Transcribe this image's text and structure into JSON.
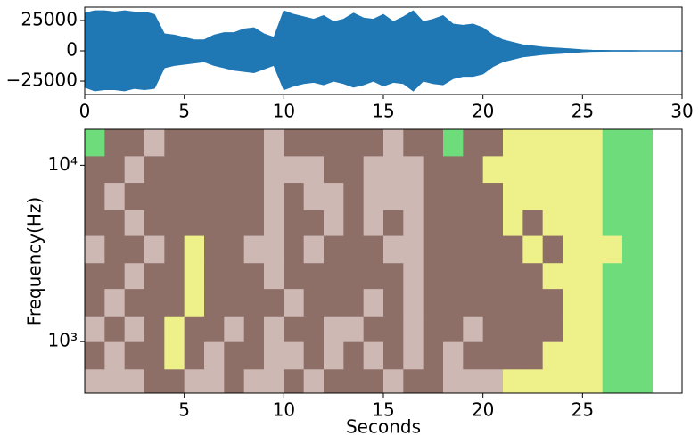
{
  "chart_data": [
    {
      "type": "envelope",
      "color": "#1f77b4",
      "x": [
        0,
        0.5,
        1,
        1.5,
        2,
        2.5,
        3,
        3.5,
        4,
        4.5,
        5,
        5.5,
        6,
        6.5,
        7,
        7.5,
        8,
        8.5,
        9,
        9.5,
        10,
        10.5,
        11,
        11.5,
        12,
        12.5,
        13,
        13.5,
        14,
        14.5,
        15,
        15.5,
        16,
        16.5,
        17,
        17.5,
        18,
        18.5,
        19,
        19.5,
        20,
        20.5,
        21,
        21.5,
        22,
        22.5,
        23,
        23.5,
        24,
        24.5,
        25,
        25.5,
        26,
        26.5,
        27,
        27.5,
        28,
        28.5,
        29,
        29.5,
        30
      ],
      "upper": [
        31000,
        33000,
        33000,
        32000,
        33000,
        32000,
        32000,
        30000,
        14000,
        13000,
        11000,
        9000,
        9000,
        13000,
        15000,
        15000,
        18000,
        19000,
        14000,
        11000,
        33000,
        30000,
        28000,
        26000,
        29000,
        24000,
        26000,
        31000,
        27000,
        26000,
        30000,
        24000,
        28000,
        33000,
        24000,
        26000,
        29000,
        22000,
        21000,
        22000,
        19000,
        13000,
        9000,
        7000,
        5000,
        4000,
        3000,
        2500,
        2000,
        1500,
        800,
        500,
        400,
        300,
        300,
        300,
        200,
        200,
        200,
        200,
        200
      ],
      "lower": [
        -30000,
        -33000,
        -32000,
        -32000,
        -33000,
        -31000,
        -32000,
        -31000,
        -14000,
        -12000,
        -11000,
        -10000,
        -9000,
        -12000,
        -14000,
        -16000,
        -17000,
        -18000,
        -15000,
        -12000,
        -32000,
        -29000,
        -27000,
        -26000,
        -28000,
        -25000,
        -27000,
        -30000,
        -28000,
        -25000,
        -29000,
        -26000,
        -27000,
        -33000,
        -25000,
        -27000,
        -28000,
        -23000,
        -21000,
        -21000,
        -19000,
        -13000,
        -9000,
        -7000,
        -5000,
        -4000,
        -3000,
        -2500,
        -2000,
        -1500,
        -800,
        -500,
        -400,
        -300,
        -300,
        -300,
        -200,
        -200,
        -200,
        -200,
        -200
      ],
      "xlim": [
        0,
        30
      ],
      "xticks": [
        0,
        5,
        10,
        15,
        20,
        25,
        30
      ],
      "ylim": [
        -36000,
        36000
      ],
      "yticks": [
        {
          "value": -25000,
          "label": "−25000"
        },
        0,
        25000
      ]
    },
    {
      "type": "heatmap",
      "xlabel": "Seconds",
      "ylabel": "Frequency(Hz)",
      "log_y": true,
      "colors": [
        "#8e6f68",
        "#cdb8b4",
        "#eef08a",
        "#6fdc7c"
      ],
      "x": [
        0,
        1,
        2,
        3,
        4,
        5,
        6,
        7,
        8,
        9,
        10,
        11,
        12,
        13,
        14,
        15,
        16,
        17,
        18,
        19,
        20,
        21,
        22,
        23,
        24,
        25,
        26,
        27,
        28,
        28.5
      ],
      "y": [
        510,
        700,
        1000,
        1400,
        2000,
        2800,
        4000,
        5600,
        8000,
        11300,
        16000
      ],
      "values": [
        [
          1,
          1,
          1,
          0,
          0,
          1,
          1,
          0,
          1,
          1,
          0,
          1,
          0,
          0,
          0,
          1,
          0,
          0,
          1,
          1,
          1,
          2,
          2,
          2,
          2,
          2,
          3,
          3,
          3
        ],
        [
          0,
          1,
          0,
          0,
          2,
          0,
          1,
          0,
          0,
          1,
          1,
          0,
          1,
          0,
          1,
          0,
          1,
          0,
          1,
          0,
          0,
          0,
          0,
          2,
          2,
          2,
          3,
          3,
          3
        ],
        [
          1,
          0,
          1,
          0,
          2,
          0,
          0,
          1,
          0,
          1,
          0,
          0,
          1,
          1,
          0,
          0,
          1,
          0,
          0,
          1,
          0,
          0,
          0,
          0,
          2,
          2,
          3,
          3,
          3
        ],
        [
          0,
          1,
          0,
          0,
          0,
          2,
          0,
          0,
          0,
          0,
          1,
          0,
          0,
          0,
          1,
          0,
          1,
          0,
          0,
          0,
          0,
          0,
          0,
          0,
          2,
          2,
          3,
          3,
          3
        ],
        [
          0,
          0,
          1,
          0,
          0,
          2,
          0,
          0,
          0,
          1,
          0,
          0,
          0,
          0,
          0,
          0,
          1,
          0,
          0,
          0,
          0,
          0,
          0,
          2,
          2,
          2,
          3,
          3,
          3
        ],
        [
          1,
          0,
          0,
          1,
          0,
          2,
          0,
          0,
          1,
          1,
          0,
          1,
          0,
          0,
          0,
          1,
          1,
          0,
          0,
          0,
          0,
          0,
          2,
          0,
          2,
          2,
          2,
          3,
          3
        ],
        [
          0,
          0,
          1,
          0,
          0,
          0,
          0,
          0,
          0,
          1,
          0,
          0,
          1,
          0,
          1,
          0,
          1,
          0,
          0,
          0,
          0,
          2,
          0,
          2,
          2,
          2,
          3,
          3,
          3
        ],
        [
          0,
          1,
          0,
          0,
          0,
          0,
          0,
          0,
          0,
          1,
          0,
          1,
          1,
          0,
          1,
          1,
          1,
          0,
          0,
          0,
          0,
          2,
          2,
          2,
          2,
          2,
          3,
          3,
          3
        ],
        [
          0,
          0,
          1,
          0,
          0,
          0,
          0,
          0,
          0,
          1,
          1,
          1,
          0,
          0,
          1,
          1,
          1,
          0,
          0,
          0,
          2,
          2,
          2,
          2,
          2,
          2,
          3,
          3,
          3
        ],
        [
          3,
          0,
          0,
          1,
          0,
          0,
          0,
          0,
          0,
          1,
          0,
          0,
          0,
          0,
          0,
          1,
          0,
          0,
          3,
          0,
          0,
          2,
          2,
          2,
          2,
          2,
          3,
          3,
          3
        ]
      ],
      "xlim": [
        0,
        30
      ],
      "xticks": [
        5,
        10,
        15,
        20,
        25
      ],
      "ylim": [
        510,
        16000
      ],
      "yticks": [
        {
          "value": 10000,
          "label": "10⁴"
        },
        {
          "value": 1000,
          "label": "10³"
        }
      ]
    }
  ]
}
